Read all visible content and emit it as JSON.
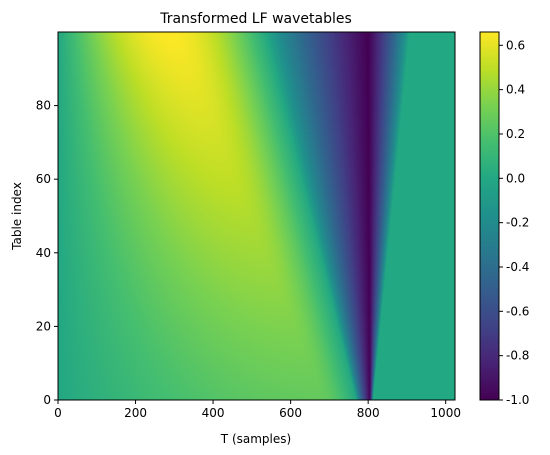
{
  "chart_data": {
    "type": "heatmap",
    "title": "Transformed LF wavetables",
    "xlabel": "T (samples)",
    "ylabel": "Table index",
    "xlim": [
      0,
      1024
    ],
    "ylim": [
      0,
      100
    ],
    "x_ticks": [
      0,
      200,
      400,
      600,
      800,
      1000
    ],
    "y_ticks": [
      0,
      20,
      40,
      60,
      80
    ],
    "colormap": "viridis",
    "colorbar": {
      "vmin": -1.0,
      "vmax": 0.66,
      "ticks": [
        "-1.0",
        "-0.8",
        "-0.6",
        "-0.4",
        "-0.2",
        "0.0",
        "0.2",
        "0.4",
        "0.6"
      ],
      "tick_values": [
        -1.0,
        -0.8,
        -0.6,
        -0.4,
        -0.2,
        0.0,
        0.2,
        0.4,
        0.6
      ]
    },
    "field": {
      "baseline": 0.0,
      "positive_lobe": {
        "start_at_index_0": 0,
        "start_at_index_99": 0,
        "end_at_index_0": 770,
        "end_at_index_99": 540,
        "peak_at_index_0": 680,
        "peak_at_index_99": 290,
        "peak_value_at_index_0": 0.26,
        "peak_value_at_index_99": 0.66
      },
      "negative_dip": {
        "start_at_index_0": 770,
        "start_at_index_99": 540,
        "min_at_index_0": 805,
        "min_at_index_99": 800,
        "end_at_index_0": 812,
        "end_at_index_99": 905,
        "min_value": -1.0
      }
    }
  }
}
